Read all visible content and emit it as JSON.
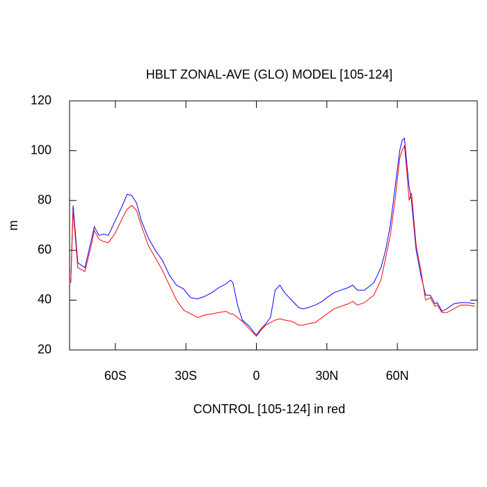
{
  "chart_data": {
    "type": "line",
    "title": "HBLT ZONAL-AVE (GLO) MODEL [105-124]",
    "x_label": "CONTROL [105-124] in red",
    "y_label": "m",
    "x": [
      -79,
      -78,
      -76,
      -73,
      -70,
      -69,
      -67,
      -65,
      -63,
      -60,
      -57,
      -55,
      -53,
      -51,
      -49,
      -46,
      -43,
      -40,
      -37,
      -34,
      -31,
      -28,
      -25,
      -22,
      -19,
      -16,
      -13,
      -11,
      -10,
      -8,
      -6,
      -3,
      -1,
      0,
      2,
      4,
      6,
      8,
      10,
      12,
      15,
      18,
      20,
      22,
      25,
      28,
      30,
      33,
      36,
      39,
      41,
      43,
      46,
      50,
      53,
      55,
      57,
      59,
      61,
      62,
      63,
      64,
      65,
      66,
      68,
      70,
      72,
      74,
      76,
      77,
      79,
      81,
      84,
      87,
      90,
      93
    ],
    "series": [
      {
        "color": "#0000ff",
        "values": [
          47,
          78,
          55,
          53,
          65,
          69.5,
          66,
          66.5,
          66,
          72,
          78,
          82.5,
          82,
          79,
          72,
          65,
          60,
          56,
          50,
          46,
          44.5,
          41,
          40.5,
          41.5,
          43,
          45,
          46.5,
          48,
          47,
          38,
          32,
          29.5,
          27,
          26,
          28.5,
          30.5,
          33,
          44,
          46,
          43,
          40,
          37,
          36.5,
          37,
          38,
          39.5,
          41,
          43,
          44,
          45,
          46,
          44,
          44,
          47,
          53,
          60,
          70,
          85,
          100,
          104,
          105,
          95,
          85.5,
          80,
          60,
          50,
          42,
          42,
          38.5,
          39,
          35.5,
          36.5,
          38.5,
          39,
          39,
          38.5
        ]
      },
      {
        "color": "#ff0000",
        "values": [
          47,
          76,
          53,
          51.5,
          63,
          68,
          64.5,
          63.5,
          63,
          67,
          73,
          76.5,
          78,
          76,
          70,
          62,
          57,
          52,
          46,
          40,
          36,
          34.5,
          33,
          34,
          34.5,
          35,
          35.5,
          34.5,
          34.5,
          33,
          31.5,
          28.5,
          26.5,
          25.5,
          28,
          30,
          31,
          32,
          32.5,
          32,
          31.5,
          30,
          30,
          30.5,
          31,
          33,
          34.5,
          36.5,
          37.5,
          38.5,
          39.5,
          38,
          39,
          42,
          48,
          57,
          66,
          80,
          97,
          100,
          102,
          92,
          80,
          83,
          62,
          52,
          40,
          41,
          37.5,
          38,
          35,
          35,
          36.5,
          38,
          38,
          37.5
        ]
      }
    ],
    "xlim": [
      -79.5,
      94
    ],
    "xticks": [
      {
        "value": -60,
        "label": "60S"
      },
      {
        "value": -30,
        "label": "30S"
      },
      0,
      {
        "value": 30,
        "label": "30N"
      },
      {
        "value": 60,
        "label": "60N"
      }
    ],
    "ylim": [
      20,
      120
    ],
    "yticks": [
      20,
      40,
      60,
      80,
      100,
      120
    ]
  }
}
